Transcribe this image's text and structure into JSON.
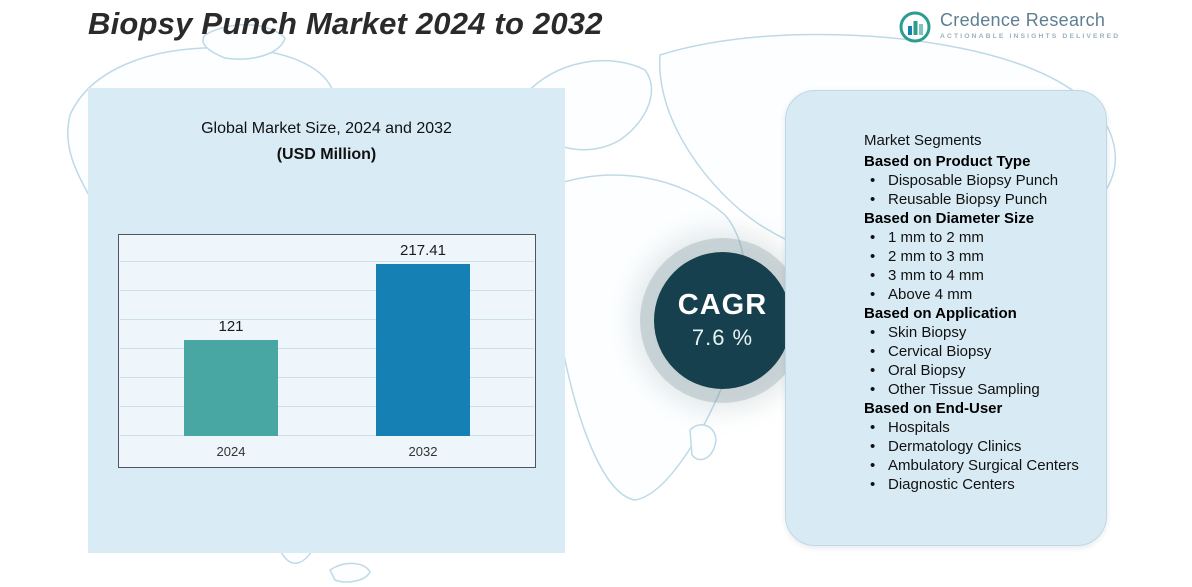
{
  "page_title": "Biopsy Punch Market 2024 to 2032",
  "logo": {
    "name": "Credence Research",
    "tagline": "Actionable Insights Delivered"
  },
  "chart_panel": {
    "title_line1": "Global Market Size, 2024 and 2032",
    "title_line2": "(USD Million)"
  },
  "chart_data": {
    "type": "bar",
    "title": "Global Market Size, 2024 and 2032 (USD Million)",
    "categories": [
      "2024",
      "2032"
    ],
    "values": [
      121,
      217.41
    ],
    "value_labels": [
      "121",
      "217.41"
    ],
    "xlabel": "",
    "ylabel": "",
    "ylim": [
      0,
      240
    ],
    "grid": true,
    "legend": "none",
    "bar_colors": [
      "#48a7a2",
      "#1480b4"
    ]
  },
  "cagr": {
    "label": "CAGR",
    "value": "7.6 %"
  },
  "segments": {
    "title": "Market Segments",
    "groups": [
      {
        "heading": "Based on Product Type",
        "items": [
          "Disposable Biopsy Punch",
          "Reusable Biopsy Punch"
        ]
      },
      {
        "heading": "Based on Diameter Size",
        "items": [
          "1 mm to 2 mm",
          "2 mm to 3 mm",
          "3 mm to 4 mm",
          "Above 4 mm"
        ]
      },
      {
        "heading": "Based on Application",
        "items": [
          "Skin Biopsy",
          "Cervical Biopsy",
          "Oral Biopsy",
          "Other Tissue Sampling"
        ]
      },
      {
        "heading": "Based on End-User",
        "items": [
          "Hospitals",
          "Dermatology Clinics",
          "Ambulatory Surgical Centers",
          "Diagnostic Centers"
        ]
      }
    ]
  },
  "colors": {
    "bar_2024": "#48a7a2",
    "bar_2032": "#1480b4",
    "cagr_circle": "#17404e",
    "panel_bg": "#d9ecf5",
    "map_line": "#bfd9e7"
  }
}
